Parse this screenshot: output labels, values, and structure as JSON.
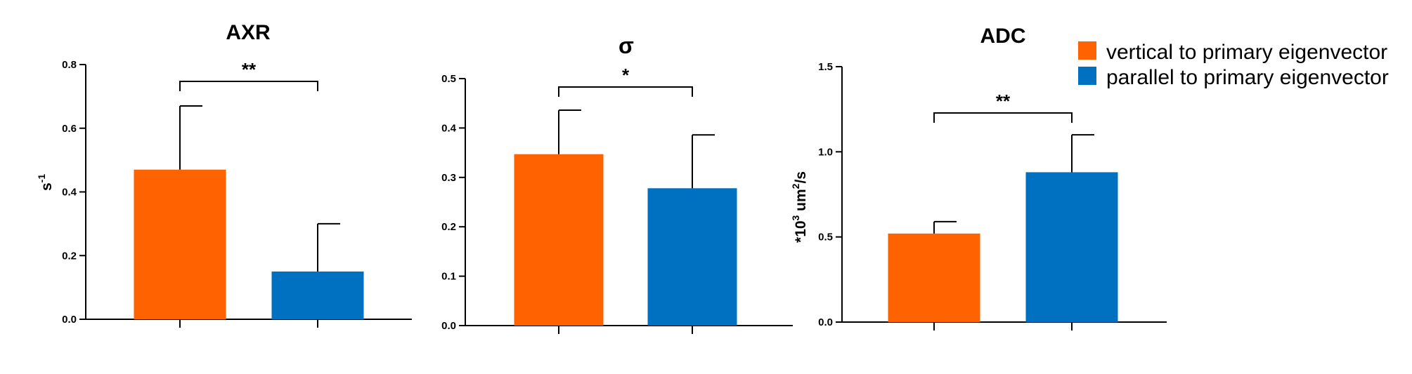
{
  "legend": {
    "items": [
      {
        "label": "vertical to primary eigenvector",
        "color": "#FF6200"
      },
      {
        "label": "parallel to primary eigenvector",
        "color": "#0070C0"
      }
    ],
    "position": "top-right"
  },
  "chart_data": [
    {
      "type": "bar",
      "title": "AXR",
      "ylabel_base": "s",
      "ylabel_sup": "-1",
      "categories": [
        "vertical to primary eigenvector",
        "parallel to primary eigenvector"
      ],
      "values": [
        0.47,
        0.15
      ],
      "errors": [
        0.2,
        0.15
      ],
      "ylim": [
        0,
        0.8
      ],
      "yticks": [
        "0.0",
        "0.2",
        "0.4",
        "0.6",
        "0.8"
      ],
      "significance": "**",
      "grid": false
    },
    {
      "type": "bar",
      "title": "σ",
      "ylabel_base": "",
      "ylabel_sup": "",
      "categories": [
        "vertical to primary eigenvector",
        "parallel to primary eigenvector"
      ],
      "values": [
        0.347,
        0.278
      ],
      "errors": [
        0.089,
        0.108
      ],
      "ylim": [
        0,
        0.5
      ],
      "yticks": [
        "0.0",
        "0.1",
        "0.2",
        "0.3",
        "0.4",
        "0.5"
      ],
      "significance": "*",
      "grid": false
    },
    {
      "type": "bar",
      "title": "ADC",
      "ylabel_base": "*10",
      "ylabel_sup": "3",
      "ylabel_mid": " um",
      "ylabel_sup2": "2",
      "ylabel_end": "/s",
      "categories": [
        "vertical to primary eigenvector",
        "parallel to primary eigenvector"
      ],
      "values": [
        0.52,
        0.88
      ],
      "errors": [
        0.07,
        0.22
      ],
      "ylim": [
        0,
        1.5
      ],
      "yticks": [
        "0.0",
        "0.5",
        "1.0",
        "1.5"
      ],
      "significance": "**",
      "grid": false
    }
  ]
}
